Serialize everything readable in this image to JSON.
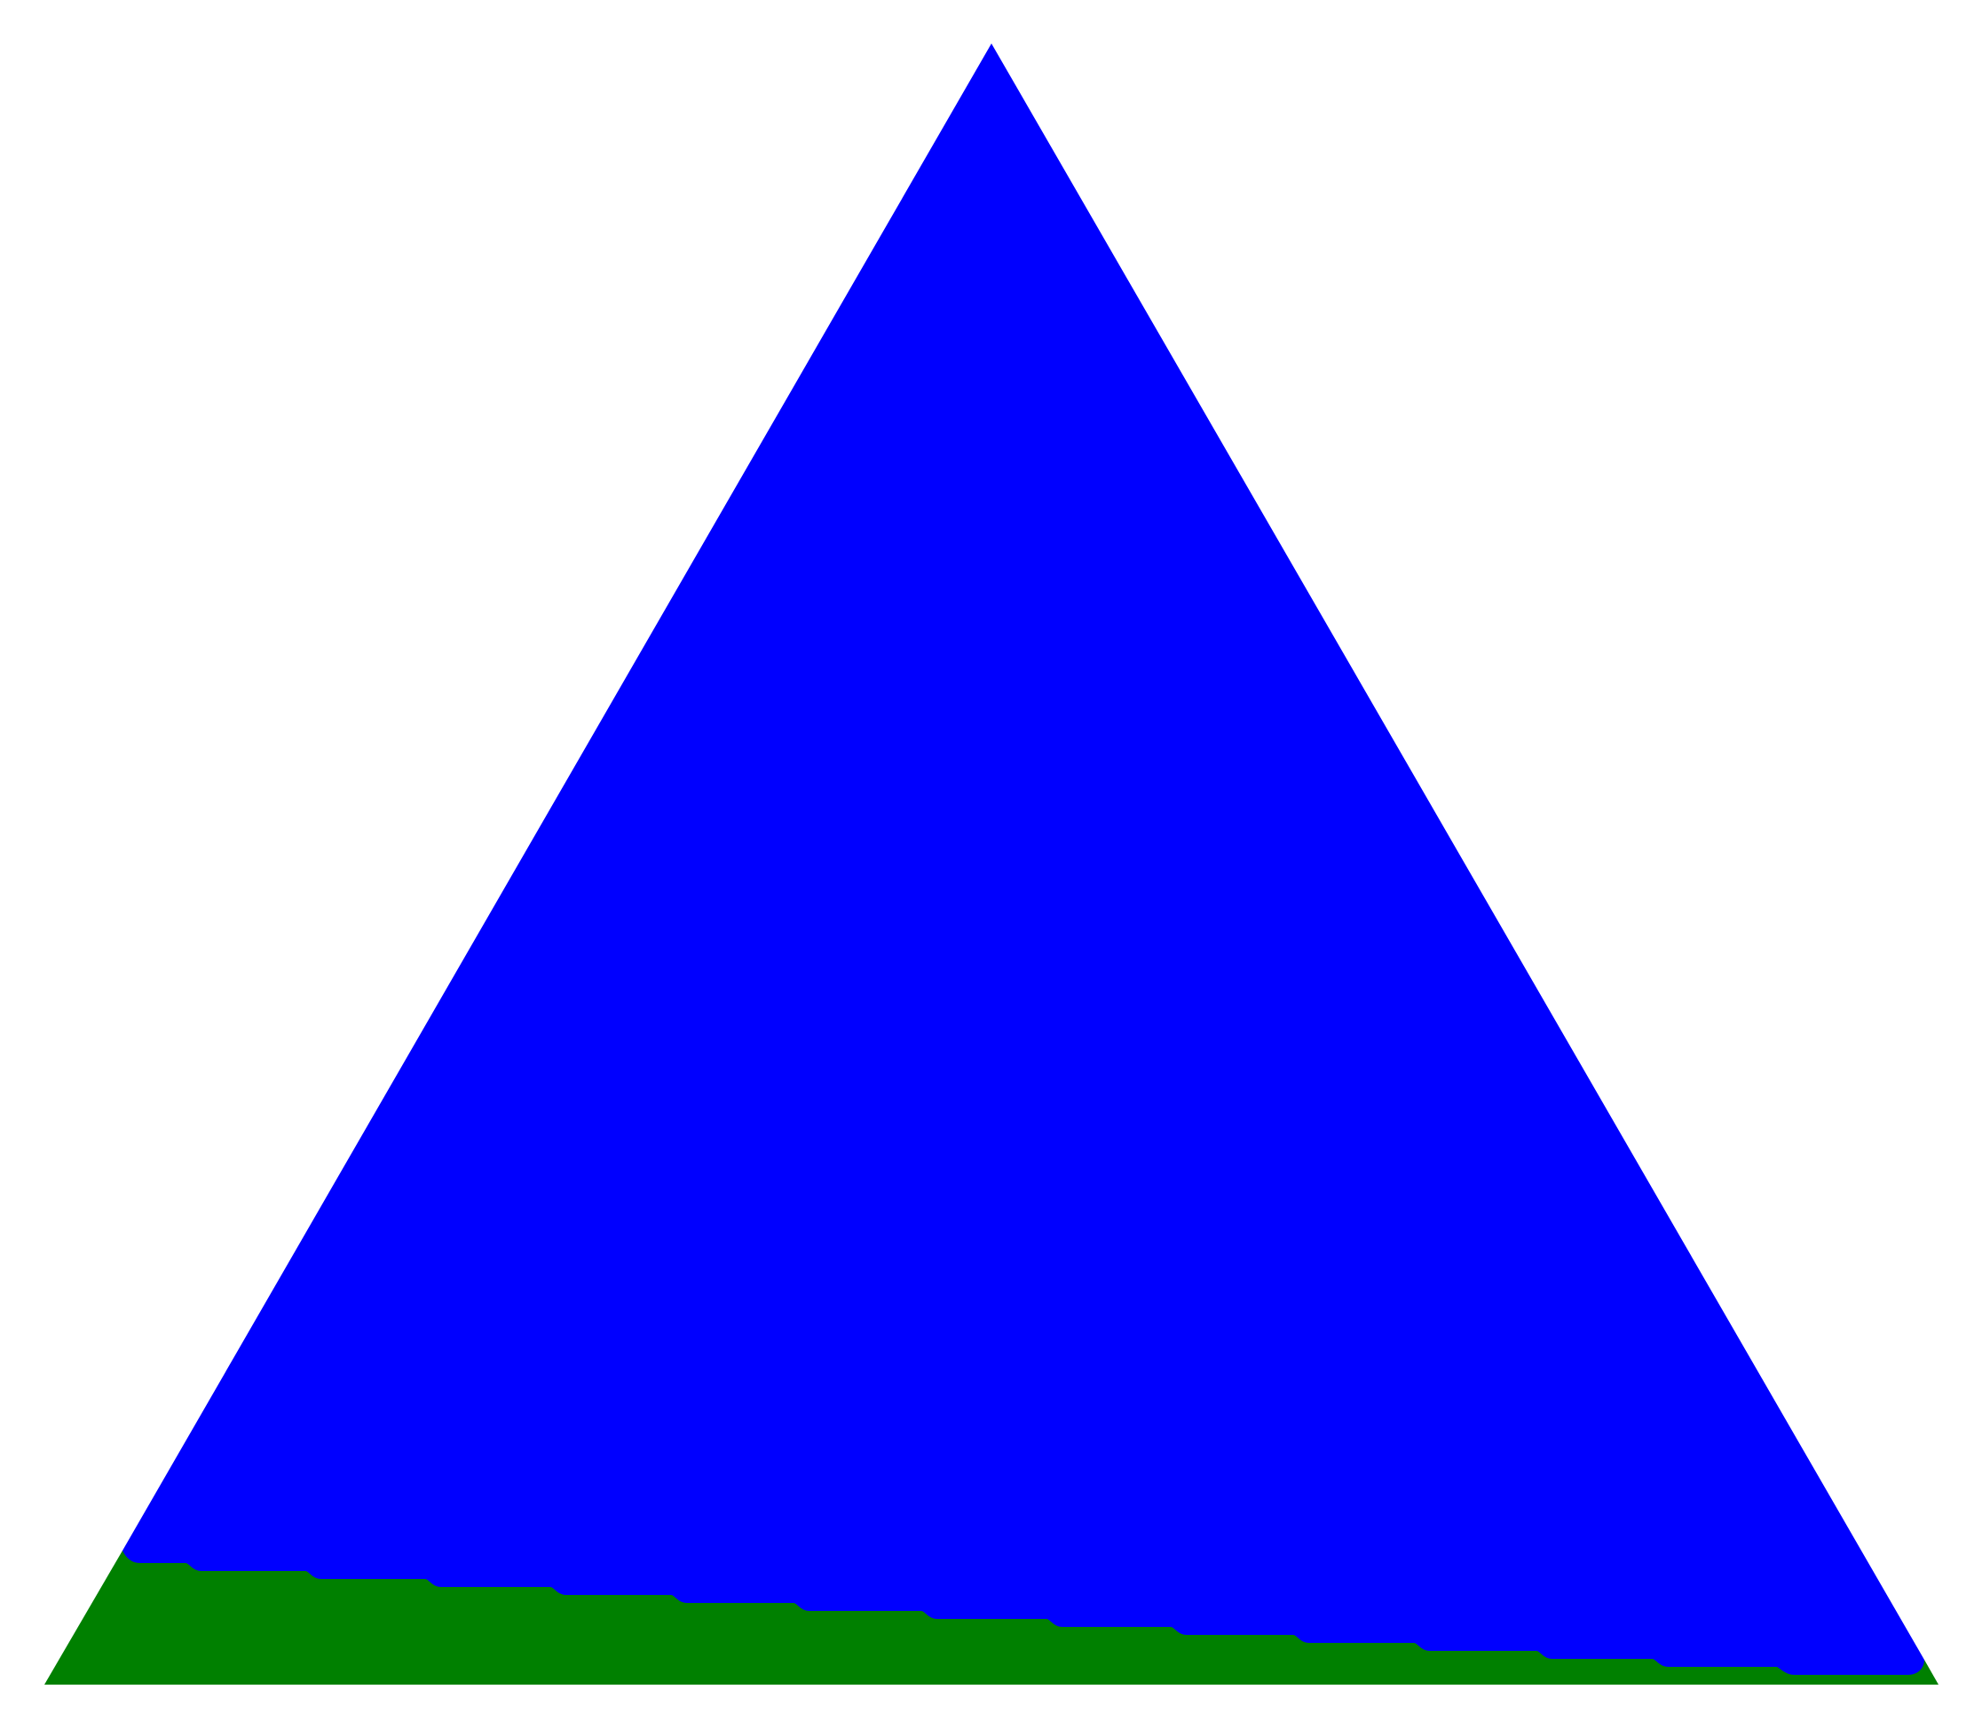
{
  "figure": {
    "background_color": "#ffffff",
    "shapes": [
      {
        "name": "triangle",
        "fill_color": "#0000ff"
      },
      {
        "name": "base-band",
        "fill_color": "#008000"
      }
    ]
  }
}
